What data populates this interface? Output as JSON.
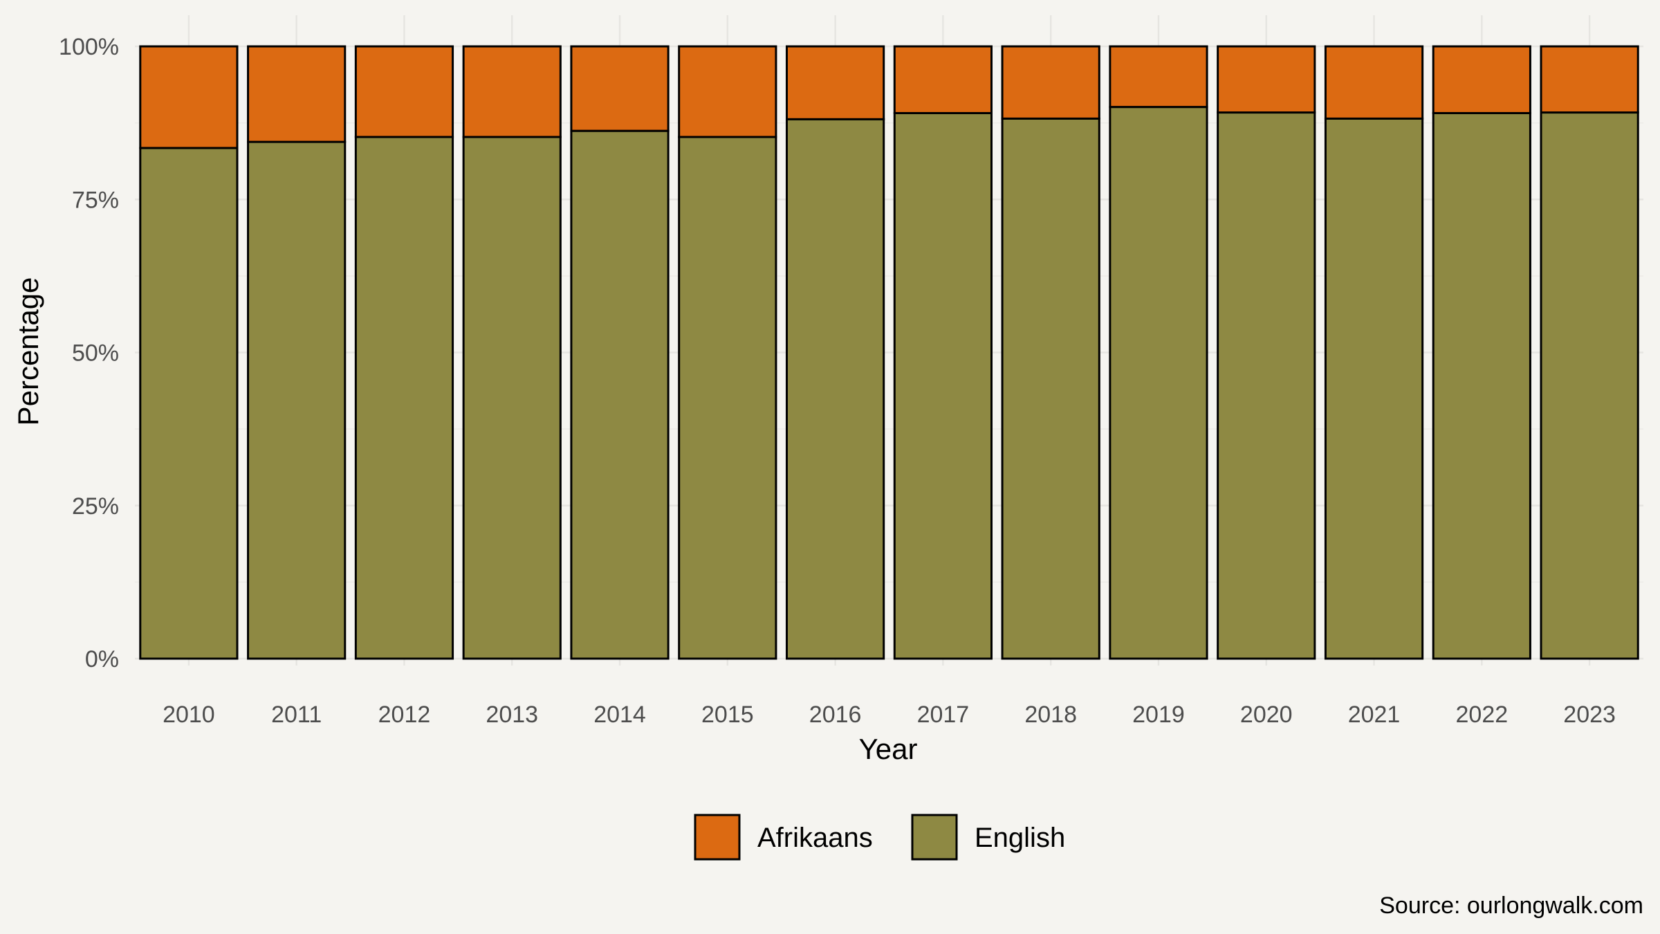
{
  "chart_data": {
    "type": "bar",
    "stacked": true,
    "categories": [
      "2010",
      "2011",
      "2012",
      "2013",
      "2014",
      "2015",
      "2016",
      "2017",
      "2018",
      "2019",
      "2020",
      "2021",
      "2022",
      "2023"
    ],
    "series": [
      {
        "name": "English",
        "color": "#8e8943",
        "values": [
          83.4,
          84.4,
          85.2,
          85.2,
          86.2,
          85.2,
          88.1,
          89.1,
          88.2,
          90.1,
          89.2,
          88.2,
          89.1,
          89.2
        ]
      },
      {
        "name": "Afrikaans",
        "color": "#dc6a12",
        "values": [
          16.6,
          15.6,
          14.8,
          14.8,
          13.8,
          14.8,
          11.9,
          10.9,
          11.8,
          9.9,
          10.8,
          11.8,
          10.9,
          10.8
        ]
      }
    ],
    "legend_order": [
      "Afrikaans",
      "English"
    ],
    "legend_position": "bottom",
    "xlabel": "Year",
    "ylabel": "Percentage",
    "ylim": [
      0,
      100
    ],
    "y_ticks": [
      0,
      25,
      50,
      75,
      100
    ],
    "y_tick_labels": [
      "0%",
      "25%",
      "50%",
      "75%",
      "100%"
    ],
    "grid": true,
    "caption": "Source: ourlongwalk.com"
  }
}
